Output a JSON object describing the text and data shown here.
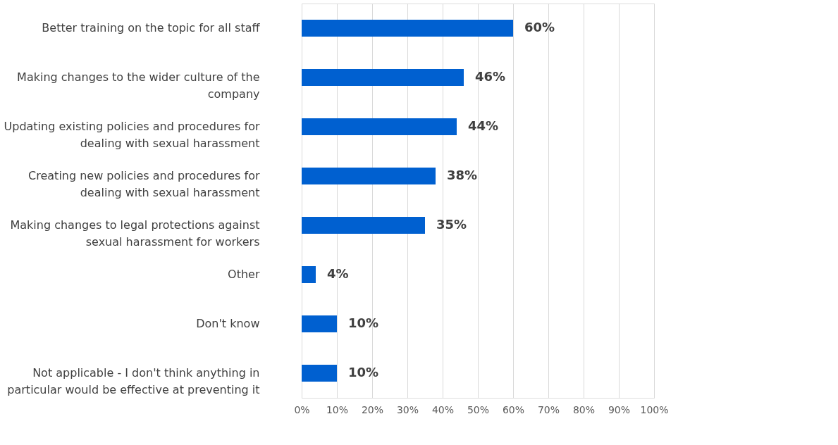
{
  "chart_data": {
    "type": "bar",
    "orientation": "horizontal",
    "categories": [
      "Better training on the topic for all staff",
      "Making changes to the wider culture of the company",
      "Updating existing policies and procedures for dealing with sexual harassment",
      "Creating new policies and procedures for dealing with sexual harassment",
      "Making changes to legal protections against sexual harassment for workers",
      "Other",
      "Don't know",
      "Not applicable - I don't think anything in particular would be effective at preventing it"
    ],
    "values": [
      60,
      46,
      44,
      38,
      35,
      4,
      10,
      10
    ],
    "value_labels": [
      "60%",
      "46%",
      "44%",
      "38%",
      "35%",
      "4%",
      "10%",
      "10%"
    ],
    "color": "#0060d0",
    "xlim": [
      0,
      100
    ],
    "xticks": [
      {
        "value": 0,
        "label": "0%"
      },
      {
        "value": 10,
        "label": "10%"
      },
      {
        "value": 20,
        "label": "20%"
      },
      {
        "value": 30,
        "label": "30%"
      },
      {
        "value": 40,
        "label": "40%"
      },
      {
        "value": 50,
        "label": "50%"
      },
      {
        "value": 60,
        "label": "60%"
      },
      {
        "value": 70,
        "label": "70%"
      },
      {
        "value": 80,
        "label": "80%"
      },
      {
        "value": 90,
        "label": "90%"
      },
      {
        "value": 100,
        "label": "100%"
      }
    ],
    "grid": "x"
  }
}
